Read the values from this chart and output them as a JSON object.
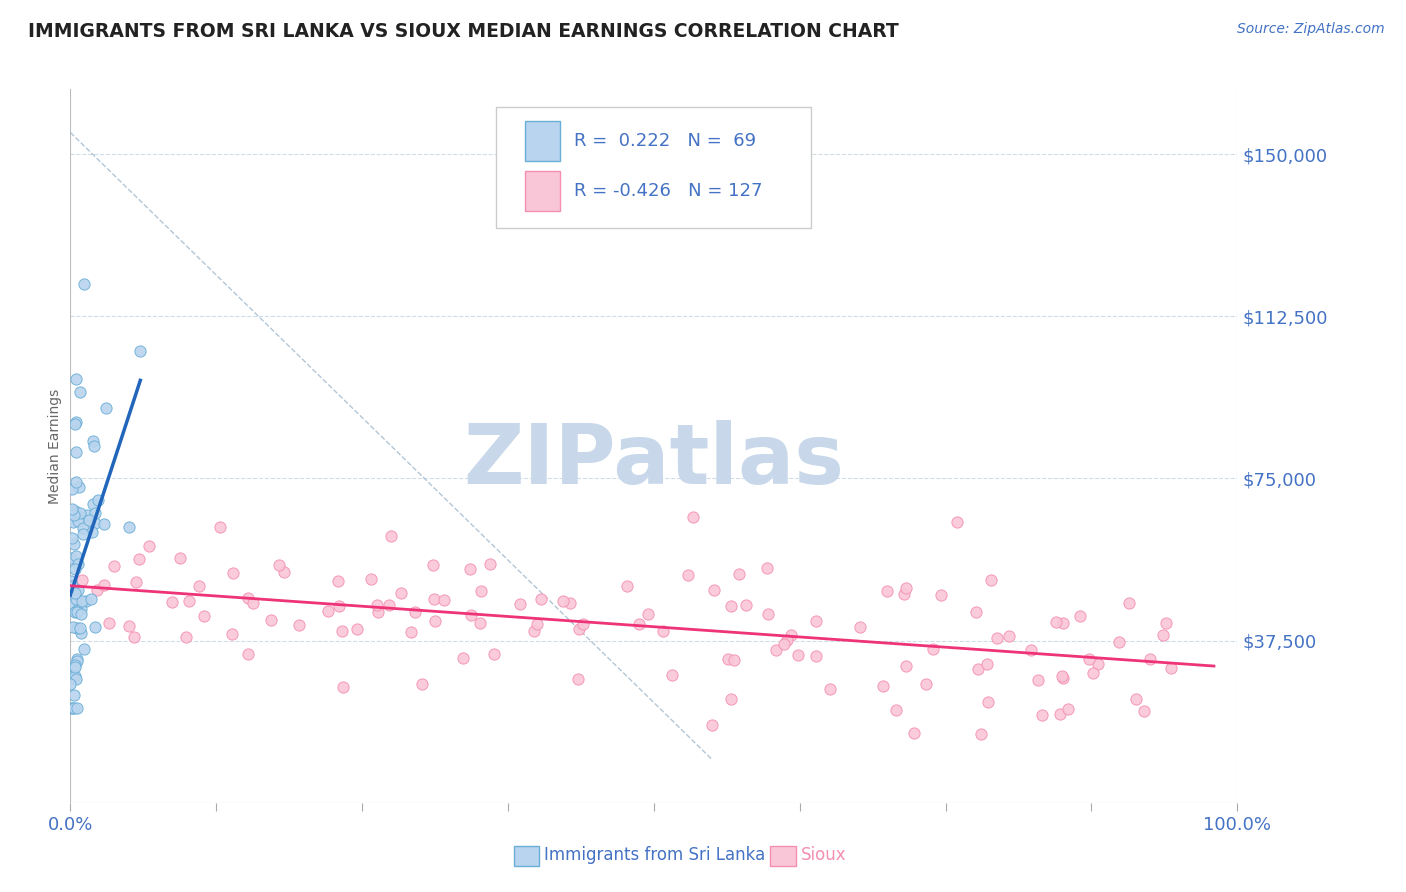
{
  "title": "IMMIGRANTS FROM SRI LANKA VS SIOUX MEDIAN EARNINGS CORRELATION CHART",
  "source": "Source: ZipAtlas.com",
  "ylabel": "Median Earnings",
  "ytick_labels": [
    "$37,500",
    "$75,000",
    "$112,500",
    "$150,000"
  ],
  "ytick_values": [
    37500,
    75000,
    112500,
    150000
  ],
  "ylim": [
    0,
    165000
  ],
  "xlim": [
    0.0,
    1.0
  ],
  "series1_name": "Immigrants from Sri Lanka",
  "series1_R": 0.222,
  "series1_N": 69,
  "series1_facecolor": "#b8d4ee",
  "series1_edgecolor": "#6aaed6",
  "series2_name": "Sioux",
  "series2_R": -0.426,
  "series2_N": 127,
  "series2_facecolor": "#f9c6d8",
  "series2_edgecolor": "#f48fb1",
  "trend1_color": "#2266bb",
  "trend2_color": "#ee3377",
  "ref_line_color": "#a0b8cc",
  "background_color": "#ffffff",
  "watermark": "ZIPatlas",
  "watermark_color": "#c8d8ea",
  "title_color": "#222222",
  "axis_color": "#4472c4",
  "legend_border_color": "#cccccc",
  "grid_color": "#d0dce8"
}
